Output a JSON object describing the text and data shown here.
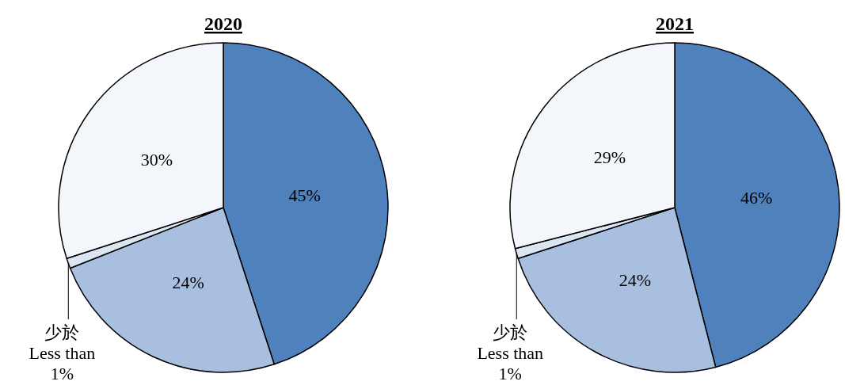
{
  "chart_data": [
    {
      "type": "pie",
      "title": "2020",
      "categories": [
        null,
        null,
        null,
        null
      ],
      "values": [
        45,
        24,
        1,
        30
      ],
      "colors": [
        "#4f81bd",
        "#a9bfe0",
        "#dce6f2",
        "#f3f6fb"
      ],
      "value_labels": [
        "45%",
        "24%",
        "少於\nLess than\n1%",
        "30%"
      ]
    },
    {
      "type": "pie",
      "title": "2021",
      "categories": [
        null,
        null,
        null,
        null
      ],
      "values": [
        46,
        24,
        1,
        29
      ],
      "colors": [
        "#4f81bd",
        "#a9bfe0",
        "#dce6f2",
        "#f3f6fb"
      ],
      "value_labels": [
        "46%",
        "24%",
        "少於\nLess than\n1%",
        "29%"
      ]
    }
  ]
}
